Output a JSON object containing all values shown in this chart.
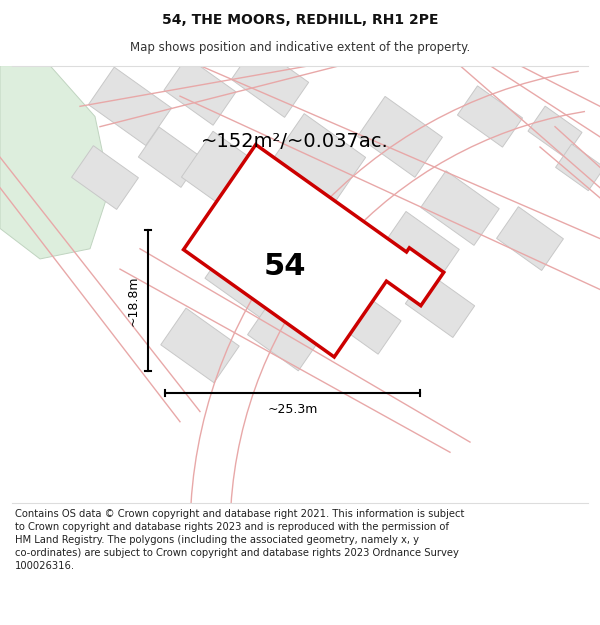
{
  "title": "54, THE MOORS, REDHILL, RH1 2PE",
  "subtitle": "Map shows position and indicative extent of the property.",
  "footer": "Contains OS data © Crown copyright and database right 2021. This information is subject\nto Crown copyright and database rights 2023 and is reproduced with the permission of\nHM Land Registry. The polygons (including the associated geometry, namely x, y\nco-ordinates) are subject to Crown copyright and database rights 2023 Ordnance Survey\n100026316.",
  "area_label": "~152m²/~0.037ac.",
  "width_label": "~25.3m",
  "height_label": "~18.8m",
  "number_label": "54",
  "bg_color": "#ffffff",
  "map_bg": "#f5f5f5",
  "plot_color": "#cc0000",
  "building_fill": "#e2e2e2",
  "building_edge": "#c8c8c8",
  "road_color": "#e8a8a8",
  "green_fill": "#ddeedd",
  "green_edge": "#c0d4c0",
  "title_fontsize": 10,
  "subtitle_fontsize": 8.5,
  "footer_fontsize": 7.2,
  "area_fontsize": 14,
  "number_fontsize": 22,
  "dim_fontsize": 9
}
